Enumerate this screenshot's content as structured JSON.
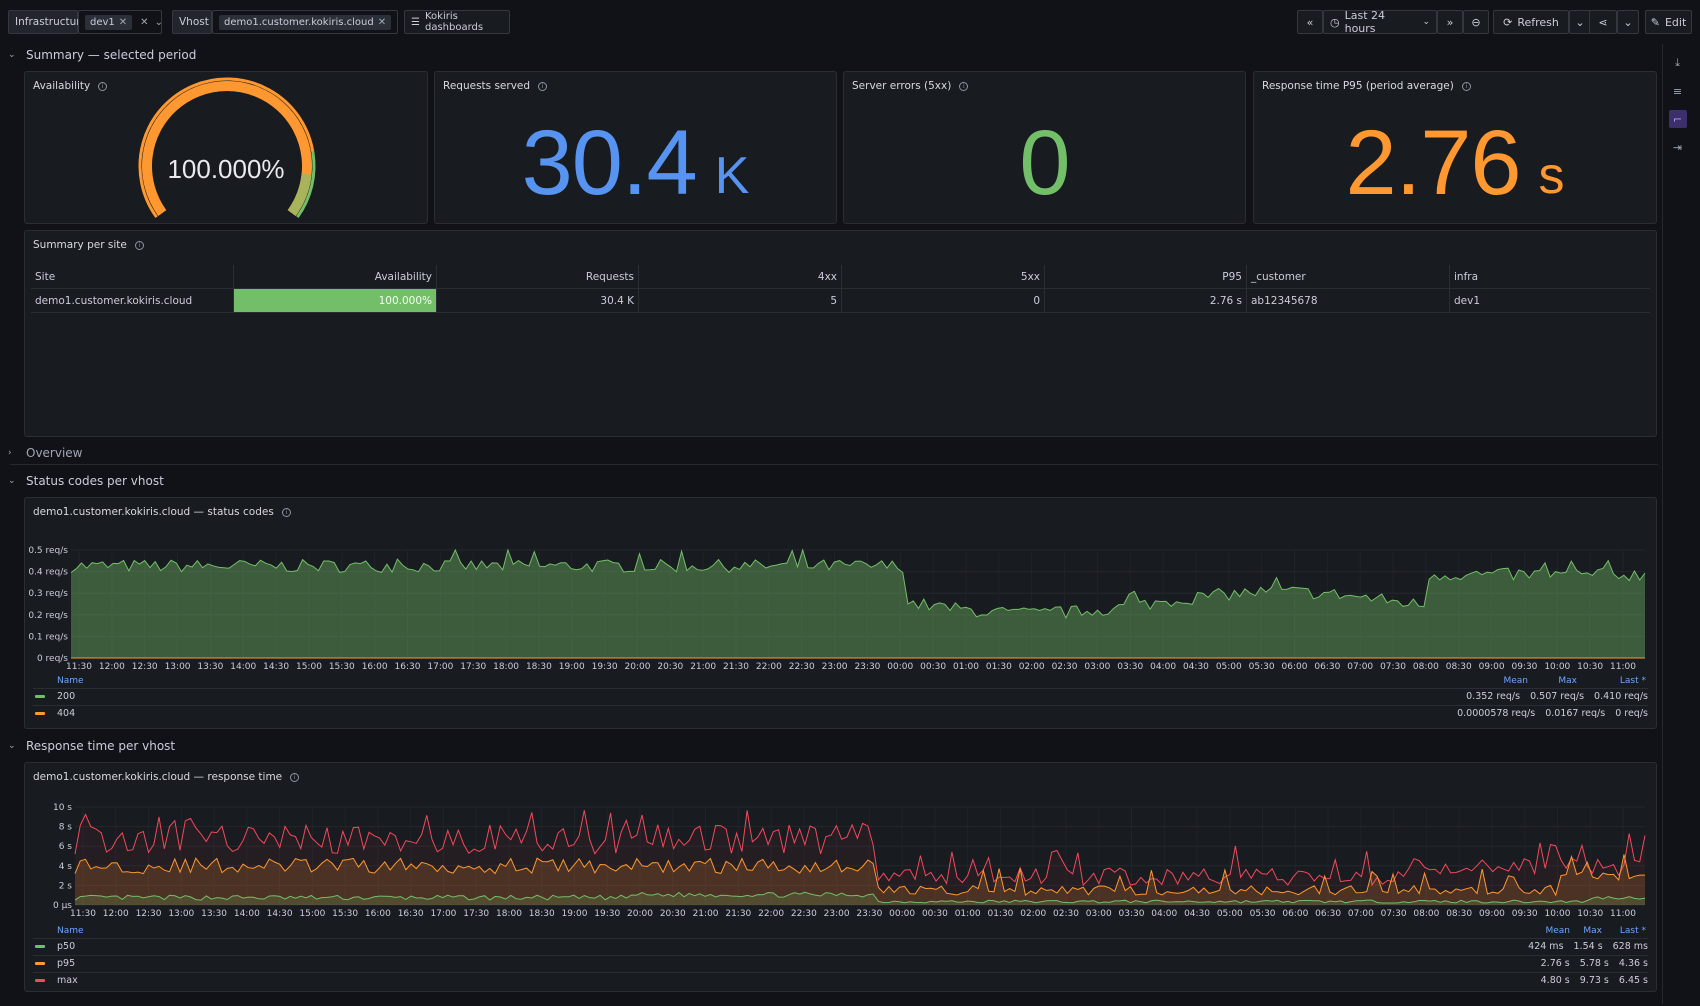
{
  "toolbar": {
    "var1_label": "Infrastructure",
    "var1_value": "dev1",
    "var2_label": "Vhost",
    "var2_value": "demo1.customer.kokiris.cloud",
    "dashboards_link": "Kokiris dashboards",
    "time_range": "Last 24 hours",
    "refresh_label": "Refresh",
    "edit_label": "Edit"
  },
  "rows": {
    "summary": "Summary — selected period",
    "overview": "Overview",
    "status": "Status codes per vhost",
    "response": "Response time per vhost"
  },
  "panels": {
    "availability": {
      "title": "Availability",
      "value": "100.000%",
      "fraction": 1.0
    },
    "requests": {
      "title": "Requests served",
      "value": "30.4",
      "unit": "K"
    },
    "errors": {
      "title": "Server errors (5xx)",
      "value": "0"
    },
    "p95": {
      "title": "Response time P95 (period average)",
      "value": "2.76",
      "unit": "s"
    }
  },
  "site_table": {
    "title": "Summary per site",
    "headers": [
      "Site",
      "Availability",
      "Requests",
      "4xx",
      "5xx",
      "P95",
      "_customer",
      "infra"
    ],
    "rows": [
      [
        "demo1.customer.kokiris.cloud",
        "100.000%",
        "30.4 K",
        "5",
        "0",
        "2.76 s",
        "ab12345678",
        "dev1"
      ]
    ]
  },
  "status_chart": {
    "title": "demo1.customer.kokiris.cloud — status codes",
    "yticks": [
      "0 req/s",
      "0.1 req/s",
      "0.2 req/s",
      "0.3 req/s",
      "0.4 req/s",
      "0.5 req/s"
    ],
    "legend_headers": {
      "name": "Name",
      "mean": "Mean",
      "max": "Max",
      "last": "Last *"
    },
    "legend": [
      {
        "name": "200",
        "color": "#73bf69",
        "mean": "0.352 req/s",
        "max": "0.507 req/s",
        "last": "0.410 req/s"
      },
      {
        "name": "404",
        "color": "#ff9830",
        "mean": "0.0000578 req/s",
        "max": "0.0167 req/s",
        "last": "0 req/s"
      }
    ]
  },
  "response_chart": {
    "title": "demo1.customer.kokiris.cloud — response time",
    "yticks": [
      "0 µs",
      "2 s",
      "4 s",
      "6 s",
      "8 s",
      "10 s"
    ],
    "legend_headers": {
      "name": "Name",
      "mean": "Mean",
      "max": "Max",
      "last": "Last *"
    },
    "legend": [
      {
        "name": "p50",
        "color": "#73bf69",
        "mean": "424 ms",
        "max": "1.54 s",
        "last": "628 ms"
      },
      {
        "name": "p95",
        "color": "#ff9830",
        "mean": "2.76 s",
        "max": "5.78 s",
        "last": "4.36 s"
      },
      {
        "name": "max",
        "color": "#f2495c",
        "mean": "4.80 s",
        "max": "9.73 s",
        "last": "6.45 s"
      }
    ]
  },
  "xticks": [
    "11:30",
    "12:00",
    "12:30",
    "13:00",
    "13:30",
    "14:00",
    "14:30",
    "15:00",
    "15:30",
    "16:00",
    "16:30",
    "17:00",
    "17:30",
    "18:00",
    "18:30",
    "19:00",
    "19:30",
    "20:00",
    "20:30",
    "21:00",
    "21:30",
    "22:00",
    "22:30",
    "23:00",
    "23:30",
    "00:00",
    "00:30",
    "01:00",
    "01:30",
    "02:00",
    "02:30",
    "03:00",
    "03:30",
    "04:00",
    "04:30",
    "05:00",
    "05:30",
    "06:00",
    "06:30",
    "07:00",
    "07:30",
    "08:00",
    "08:30",
    "09:00",
    "09:30",
    "10:00",
    "10:30",
    "11:00"
  ],
  "colors": {
    "blue": "#5794f2",
    "green": "#73bf69",
    "orange": "#ff9830",
    "red": "#f2495c"
  }
}
